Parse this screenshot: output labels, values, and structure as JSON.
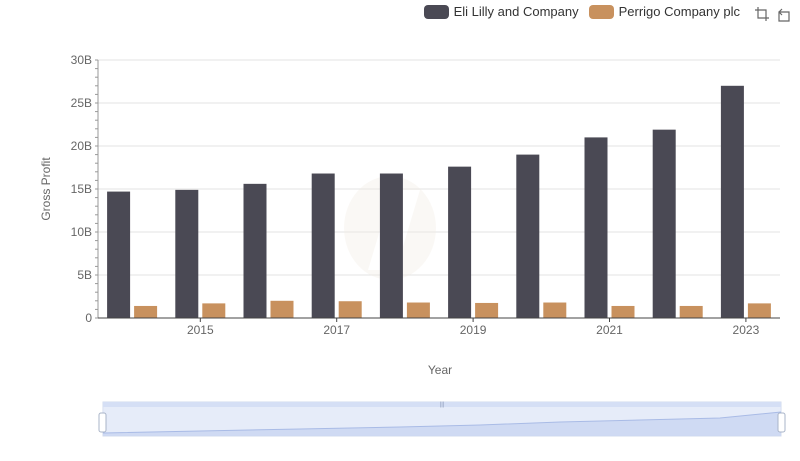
{
  "legend": {
    "items": [
      {
        "name": "Eli Lilly and Company",
        "color": "#4a4954"
      },
      {
        "name": "Perrigo Company plc",
        "color": "#c8915e"
      }
    ]
  },
  "toolbox": {
    "icons": [
      "zoom-icon",
      "restore-icon"
    ]
  },
  "chart_data": {
    "type": "bar",
    "xlabel": "Year",
    "ylabel": "Gross Profit",
    "categories": [
      "2014",
      "2015",
      "2016",
      "2017",
      "2018",
      "2019",
      "2020",
      "2021",
      "2022",
      "2023"
    ],
    "x_tick_labels": [
      "2015",
      "2017",
      "2019",
      "2021",
      "2023"
    ],
    "y_tick_labels": [
      "0",
      "5B",
      "10B",
      "15B",
      "20B",
      "25B",
      "30B"
    ],
    "ylim": [
      0,
      30000000000
    ],
    "grid": true,
    "legend_position": "top-right",
    "series": [
      {
        "name": "Eli Lilly and Company",
        "color": "#4a4954",
        "values": [
          14700000000,
          14900000000,
          15600000000,
          16800000000,
          16800000000,
          17600000000,
          19000000000,
          21000000000,
          21900000000,
          27000000000
        ]
      },
      {
        "name": "Perrigo Company plc",
        "color": "#c8915e",
        "values": [
          1400000000,
          1700000000,
          2000000000,
          1950000000,
          1800000000,
          1750000000,
          1800000000,
          1400000000,
          1400000000,
          1700000000
        ]
      }
    ]
  }
}
